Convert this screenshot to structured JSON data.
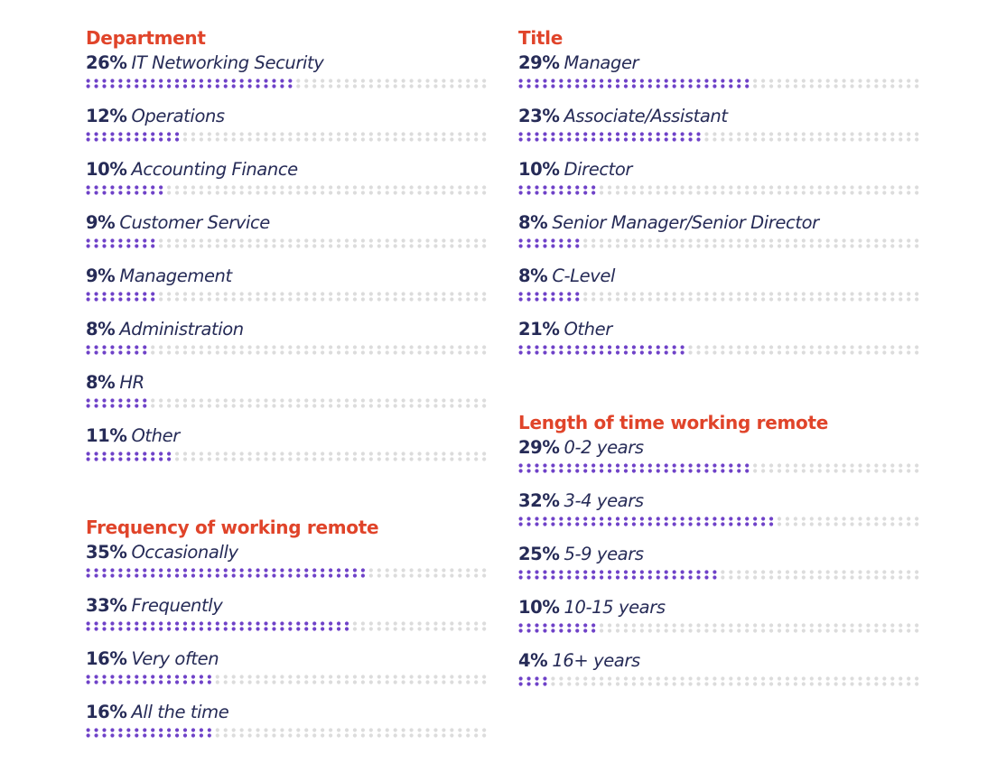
{
  "colors": {
    "title": "#e0442a",
    "text": "#262b57",
    "filled_dot": "#6f42c8",
    "empty_dot": "#dcdcdc"
  },
  "chart_data": [
    {
      "type": "bar",
      "title": "Department",
      "categories": [
        "IT Networking Security",
        "Operations",
        "Accounting Finance",
        "Customer Service",
        "Management",
        "Administration",
        "HR",
        "Other"
      ],
      "labels": [
        "26%",
        "12%",
        "10%",
        "9%",
        "9%",
        "8%",
        "8%",
        "11%"
      ],
      "values": [
        26,
        12,
        10,
        9,
        9,
        8,
        8,
        11
      ]
    },
    {
      "type": "bar",
      "title": "Frequency of working remote",
      "categories": [
        "Occasionally",
        "Frequently",
        "Very often",
        "All the time"
      ],
      "labels": [
        "35%",
        "33%",
        "16%",
        "16%"
      ],
      "values": [
        35,
        33,
        16,
        16
      ]
    },
    {
      "type": "bar",
      "title": "Title",
      "categories": [
        "Manager",
        "Associate/Assistant",
        "Director",
        "Senior Manager/Senior Director",
        "C-Level",
        "Other"
      ],
      "labels": [
        "29%",
        "23%",
        "10%",
        "8%",
        "8%",
        "21%"
      ],
      "values": [
        29,
        23,
        10,
        8,
        8,
        21
      ]
    },
    {
      "type": "bar",
      "title": "Length of time working remote",
      "categories": [
        "0-2 years",
        "3-4 years",
        "5-9 years",
        "10-15 years",
        "16+ years"
      ],
      "labels": [
        "29%",
        "32%",
        "25%",
        "10%",
        "4%"
      ],
      "values": [
        29,
        32,
        25,
        10,
        4
      ]
    }
  ]
}
